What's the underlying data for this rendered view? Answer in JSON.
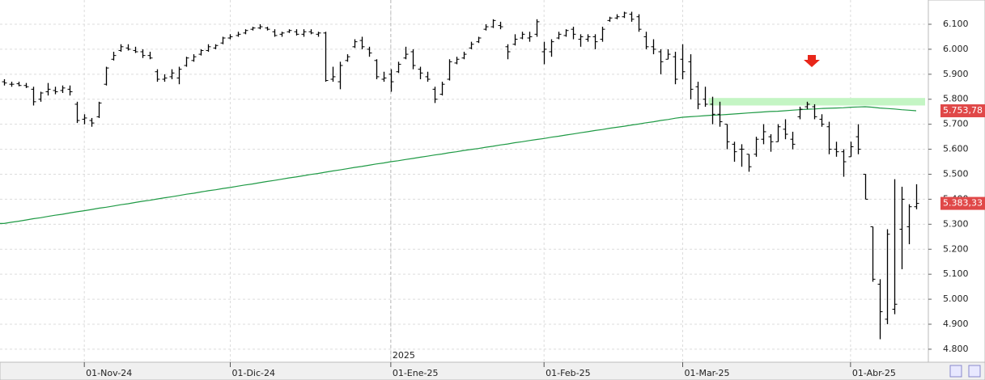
{
  "chart_data": {
    "type": "ohlc",
    "color": "#000000",
    "grid": true,
    "categories": [
      null,
      null,
      null,
      null,
      null,
      null,
      null,
      null,
      null,
      null,
      null,
      "01-Nov-24",
      null,
      null,
      null,
      null,
      null,
      null,
      null,
      null,
      null,
      null,
      null,
      null,
      null,
      null,
      null,
      null,
      null,
      null,
      null,
      "01-Dic-24",
      null,
      null,
      null,
      null,
      null,
      null,
      null,
      null,
      null,
      null,
      null,
      null,
      null,
      null,
      null,
      null,
      null,
      null,
      null,
      null,
      null,
      "01-Ene-25",
      null,
      null,
      null,
      null,
      null,
      null,
      null,
      null,
      null,
      null,
      null,
      null,
      null,
      null,
      null,
      null,
      null,
      null,
      null,
      null,
      "01-Feb-25",
      null,
      null,
      null,
      null,
      null,
      null,
      null,
      null,
      null,
      null,
      null,
      null,
      null,
      null,
      null,
      null,
      null,
      null,
      "01-Mar-25",
      null,
      null,
      null,
      null,
      null,
      null,
      null,
      null,
      null,
      null,
      null,
      null,
      null,
      null,
      null,
      null,
      null,
      null,
      null,
      null,
      null,
      null,
      "01-Abr-25",
      null,
      null,
      null,
      null,
      null,
      null,
      null,
      null,
      null
    ],
    "open": [
      5870,
      5860,
      5862,
      5855,
      5840,
      5800,
      5830,
      5835,
      5835,
      5840,
      5780,
      5720,
      5715,
      5730,
      5860,
      5960,
      5995,
      6005,
      5995,
      5990,
      5975,
      5910,
      5880,
      5890,
      5885,
      5935,
      5955,
      5980,
      5995,
      6005,
      6025,
      6045,
      6055,
      6065,
      6080,
      6085,
      6085,
      6070,
      6060,
      6070,
      6070,
      6060,
      6070,
      6060,
      6065,
      5880,
      5870,
      5955,
      6010,
      6035,
      6000,
      5955,
      5880,
      5900,
      5910,
      5965,
      5990,
      5920,
      5890,
      5840,
      5820,
      5880,
      5945,
      5965,
      6005,
      6030,
      6080,
      6090,
      6095,
      6010,
      6020,
      6045,
      6045,
      6060,
      5990,
      5990,
      6045,
      6055,
      6080,
      6040,
      6040,
      6050,
      6040,
      6115,
      6125,
      6130,
      6140,
      6130,
      6050,
      6010,
      5990,
      5960,
      5970,
      5960,
      5950,
      5850,
      5800,
      5780,
      5740,
      5700,
      5620,
      5600,
      5580,
      5580,
      5640,
      5650,
      5630,
      5680,
      5640,
      5730,
      5770,
      5770,
      5720,
      5690,
      5600,
      5590,
      5570,
      5650,
      5500,
      5290,
      5060,
      4920,
      4960,
      5280,
      5290,
      5370
    ],
    "high": [
      5880,
      5870,
      5870,
      5865,
      5850,
      5830,
      5865,
      5850,
      5855,
      5855,
      5790,
      5740,
      5725,
      5790,
      5930,
      5990,
      6020,
      6020,
      6010,
      6000,
      5990,
      5920,
      5900,
      5920,
      5930,
      5970,
      5980,
      6000,
      6020,
      6020,
      6050,
      6060,
      6070,
      6080,
      6090,
      6100,
      6090,
      6080,
      6070,
      6080,
      6080,
      6080,
      6080,
      6070,
      6070,
      5930,
      5950,
      5980,
      6040,
      6050,
      6010,
      5960,
      5910,
      5920,
      5950,
      6010,
      6000,
      5930,
      5910,
      5850,
      5870,
      5960,
      5970,
      5990,
      6030,
      6050,
      6100,
      6120,
      6110,
      6020,
      6060,
      6070,
      6070,
      6120,
      6030,
      6040,
      6070,
      6080,
      6090,
      6060,
      6060,
      6060,
      6090,
      6130,
      6140,
      6150,
      6150,
      6140,
      6070,
      6040,
      6000,
      6000,
      5990,
      6020,
      5980,
      5870,
      5850,
      5810,
      5790,
      5700,
      5630,
      5620,
      5580,
      5650,
      5700,
      5660,
      5700,
      5720,
      5670,
      5770,
      5790,
      5780,
      5740,
      5710,
      5630,
      5600,
      5630,
      5700,
      5500,
      5290,
      5080,
      5280,
      5480,
      5450,
      5380,
      5460
    ],
    "low": [
      5855,
      5850,
      5852,
      5845,
      5775,
      5790,
      5815,
      5820,
      5825,
      5815,
      5705,
      5700,
      5690,
      5725,
      5855,
      5955,
      5990,
      5995,
      5985,
      5965,
      5960,
      5870,
      5870,
      5880,
      5860,
      5930,
      5950,
      5975,
      5990,
      6000,
      6020,
      6040,
      6050,
      6060,
      6075,
      6080,
      6075,
      6050,
      6050,
      6065,
      6055,
      6050,
      6060,
      6050,
      5870,
      5870,
      5840,
      5950,
      6005,
      6000,
      5970,
      5880,
      5870,
      5830,
      5905,
      5960,
      5920,
      5880,
      5870,
      5785,
      5815,
      5875,
      5940,
      5960,
      6000,
      6025,
      6075,
      6085,
      6080,
      5960,
      6015,
      6040,
      6030,
      6050,
      5940,
      5970,
      6040,
      6050,
      6040,
      6010,
      6030,
      6000,
      6030,
      6110,
      6120,
      6125,
      6110,
      6070,
      6000,
      5980,
      5900,
      5960,
      5860,
      5880,
      5800,
      5760,
      5770,
      5700,
      5690,
      5600,
      5550,
      5530,
      5510,
      5570,
      5620,
      5590,
      5630,
      5640,
      5600,
      5720,
      5760,
      5720,
      5690,
      5580,
      5570,
      5490,
      5570,
      5580,
      5400,
      5070,
      4840,
      4900,
      4940,
      5120,
      5220,
      5360
    ],
    "close": [
      5865,
      5860,
      5855,
      5850,
      5790,
      5825,
      5840,
      5830,
      5845,
      5830,
      5715,
      5725,
      5705,
      5785,
      5925,
      5975,
      6010,
      6000,
      5990,
      5975,
      5965,
      5880,
      5885,
      5905,
      5920,
      5965,
      5970,
      5995,
      6010,
      6015,
      6045,
      6050,
      6060,
      6075,
      6085,
      6090,
      6080,
      6055,
      6065,
      6075,
      6060,
      6070,
      6065,
      6065,
      5875,
      5890,
      5935,
      5970,
      6030,
      6010,
      5985,
      5890,
      5885,
      5870,
      5940,
      5980,
      5935,
      5905,
      5880,
      5800,
      5860,
      5950,
      5960,
      5980,
      6020,
      6045,
      6090,
      6115,
      6090,
      5990,
      6040,
      6060,
      6050,
      6110,
      6000,
      6030,
      6060,
      6075,
      6060,
      6050,
      6050,
      6030,
      6080,
      6125,
      6130,
      6145,
      6120,
      6080,
      6010,
      6000,
      5950,
      5980,
      5880,
      5910,
      5840,
      5780,
      5780,
      5740,
      5710,
      5630,
      5590,
      5600,
      5530,
      5640,
      5670,
      5630,
      5690,
      5660,
      5620,
      5760,
      5780,
      5730,
      5700,
      5600,
      5590,
      5550,
      5610,
      5600,
      5400,
      5080,
      4950,
      5260,
      4980,
      5400,
      5370,
      5383.33
    ],
    "close_last_label": "5.383,33",
    "average": {
      "color": "#1f9a45",
      "label_color": "#e04848",
      "values": [
        5303,
        5308,
        5312,
        5317,
        5322,
        5326,
        5331,
        5336,
        5340,
        5345,
        5350,
        5354,
        5359,
        5364,
        5368,
        5373,
        5378,
        5382,
        5387,
        5392,
        5396,
        5401,
        5406,
        5410,
        5415,
        5420,
        5424,
        5429,
        5434,
        5438,
        5443,
        5447,
        5452,
        5457,
        5461,
        5466,
        5471,
        5475,
        5480,
        5485,
        5489,
        5494,
        5499,
        5503,
        5508,
        5513,
        5517,
        5522,
        5527,
        5531,
        5536,
        5541,
        5545,
        5550,
        5554,
        5559,
        5563,
        5568,
        5572,
        5577,
        5581,
        5586,
        5590,
        5595,
        5599,
        5603,
        5608,
        5612,
        5617,
        5621,
        5626,
        5630,
        5635,
        5639,
        5643,
        5648,
        5652,
        5657,
        5661,
        5666,
        5670,
        5675,
        5679,
        5684,
        5688,
        5692,
        5697,
        5701,
        5706,
        5710,
        5715,
        5719,
        5724,
        5728,
        5730,
        5732,
        5734,
        5736,
        5737,
        5739,
        5741,
        5743,
        5745,
        5747,
        5749,
        5751,
        5752,
        5754,
        5756,
        5758,
        5760,
        5761,
        5763,
        5764,
        5765,
        5766,
        5768,
        5769,
        5770,
        5768,
        5765,
        5763,
        5761,
        5758,
        5756,
        5753.78
      ],
      "last_label": "5.753,78"
    },
    "zone": {
      "ylim": [
        5775,
        5805
      ],
      "start": 97,
      "color": "#c4f5c4"
    },
    "annotations": [
      {
        "text": "2025",
        "category": "01-Ene-25"
      }
    ],
    "ylim": [
      4748,
      6197
    ],
    "yticks": [
      {
        "value": 4800,
        "label": "4.800"
      },
      {
        "value": 4900,
        "label": "4.900"
      },
      {
        "value": 5000,
        "label": "5.000"
      },
      {
        "value": 5100,
        "label": "5.100"
      },
      {
        "value": 5200,
        "label": "5.200"
      },
      {
        "value": 5300,
        "label": "5.300"
      },
      {
        "value": 5400,
        "label": "5.400"
      },
      {
        "value": 5500,
        "label": "5.500"
      },
      {
        "value": 5600,
        "label": "5.600"
      },
      {
        "value": 5700,
        "label": "5.700"
      },
      {
        "value": 5800,
        "label": "5.800"
      },
      {
        "value": 5900,
        "label": "5.900"
      },
      {
        "value": 6000,
        "label": "6.000"
      },
      {
        "value": 6100,
        "label": "6.100"
      }
    ]
  }
}
